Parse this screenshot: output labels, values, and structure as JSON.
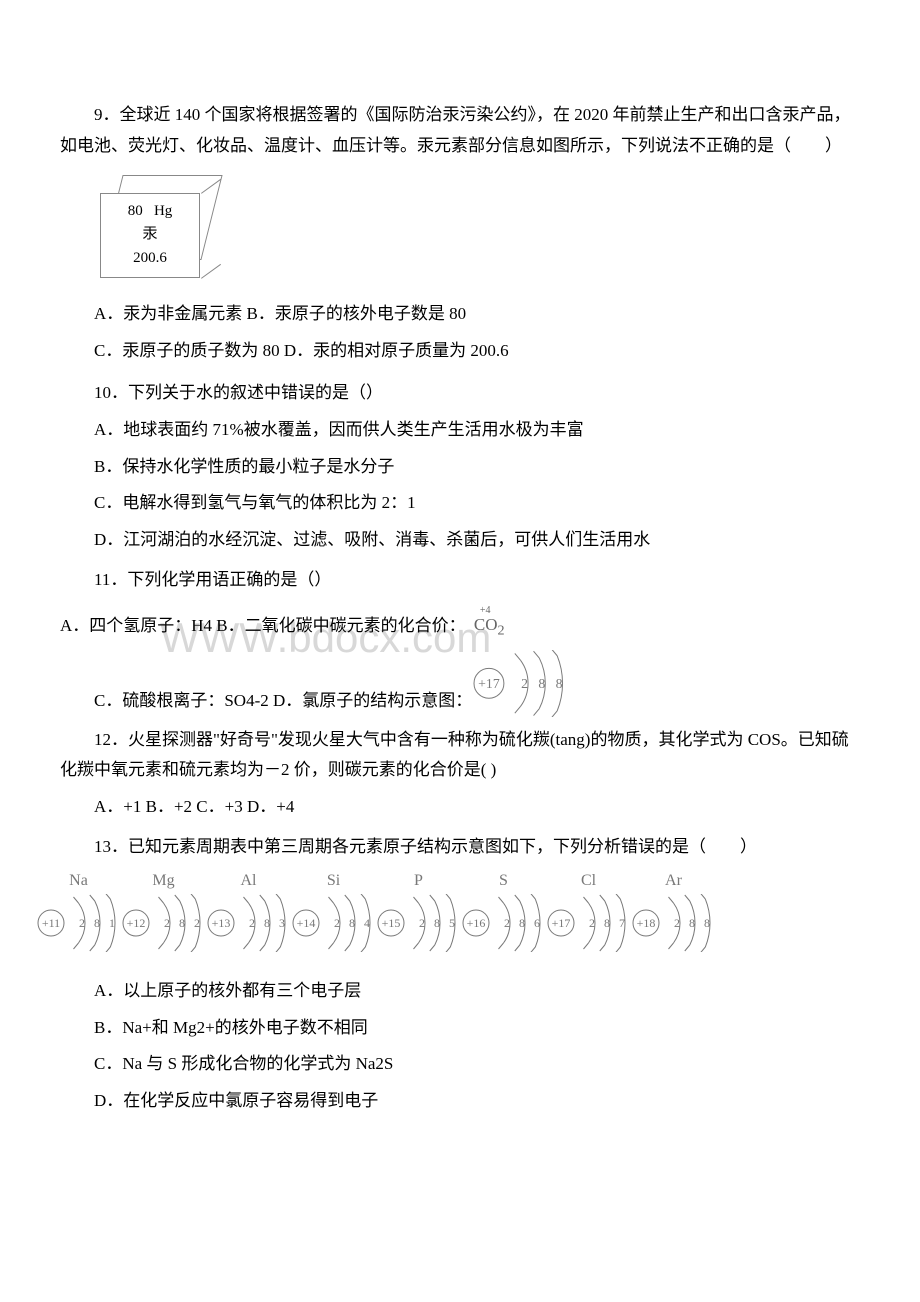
{
  "q9": {
    "stem": "9．全球近 140 个国家将根据签署的《国际防治汞污染公约》，在 2020 年前禁止生产和出口含汞产品，如电池、荧光灯、化妆品、温度计、血压计等。汞元素部分信息如图所示，下列说法不正确的是（　　）",
    "tile": {
      "num": "80",
      "sym": "Hg",
      "name": "汞",
      "mass": "200.6"
    },
    "line1": "A．汞为非金属元素 B．汞原子的核外电子数是 80",
    "line2": "C．汞原子的质子数为 80 D．汞的相对原子质量为 200.6"
  },
  "q10": {
    "stem": "10．下列关于水的叙述中错误的是（）",
    "a": "A．地球表面约 71%被水覆盖，因而供人类生产生活用水极为丰富",
    "b": "B．保持水化学性质的最小粒子是水分子",
    "c": "C．电解水得到氢气与氧气的体积比为 2：1",
    "d": "D．江河湖泊的水经沉淀、过滤、吸附、消毒、杀菌后，可供人们生活用水"
  },
  "q11": {
    "stem": "11．下列化学用语正确的是（）",
    "a_text": "A．四个氢原子：H4 B．二氧化碳中碳元素的化合价：",
    "co2": {
      "charge": "+4",
      "formula": "CO",
      "sub": "2",
      "color": "#7a7a7a"
    },
    "c_text": "C．硫酸根离子：SO4-2 D．氯原子的结构示意图：",
    "atom_cl": {
      "protons": 17,
      "shells": [
        2,
        8,
        8
      ],
      "color": "#7a7a7a"
    }
  },
  "q12": {
    "stem": "12．火星探测器\"好奇号\"发现火星大气中含有一种称为硫化羰(tang)的物质，其化学式为 COS。已知硫化羰中氧元素和硫元素均为－2 价，则碳元素的化合价是(  )",
    "opts": "A．+1 B．+2 C．+3 D．+4"
  },
  "q13": {
    "stem": "13．已知元素周期表中第三周期各元素原子结构示意图如下，下列分析错误的是（　　）",
    "atoms": [
      {
        "label": "Na",
        "p": 11,
        "s": [
          2,
          8,
          1
        ]
      },
      {
        "label": "Mg",
        "p": 12,
        "s": [
          2,
          8,
          2
        ]
      },
      {
        "label": "Al",
        "p": 13,
        "s": [
          2,
          8,
          3
        ]
      },
      {
        "label": "Si",
        "p": 14,
        "s": [
          2,
          8,
          4
        ]
      },
      {
        "label": "P",
        "p": 15,
        "s": [
          2,
          8,
          5
        ]
      },
      {
        "label": "S",
        "p": 16,
        "s": [
          2,
          8,
          6
        ]
      },
      {
        "label": "Cl",
        "p": 17,
        "s": [
          2,
          8,
          7
        ]
      },
      {
        "label": "Ar",
        "p": 18,
        "s": [
          2,
          8,
          8
        ]
      }
    ],
    "a": "A．以上原子的核外都有三个电子层",
    "b": "B．Na+和 Mg2+的核外电子数不相同",
    "c": "C．Na 与 S 形成化合物的化学式为 Na2S",
    "d": "D．在化学反应中氯原子容易得到电子",
    "color": "#787878"
  },
  "watermark": "WWW.bdocx.com"
}
